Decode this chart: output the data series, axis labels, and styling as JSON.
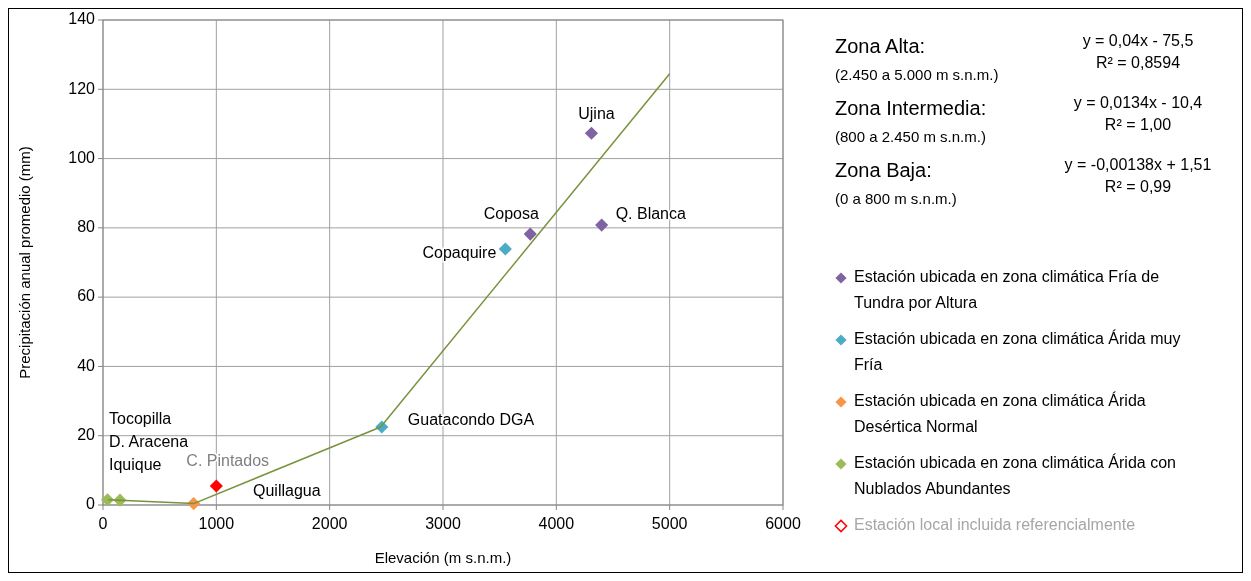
{
  "chart_data": {
    "type": "scatter",
    "xlabel": "Elevación (m s.n.m.)",
    "ylabel": "Precipitación anual promedio (mm)",
    "xlim": [
      0,
      6000
    ],
    "xticks": [
      0,
      1000,
      2000,
      3000,
      4000,
      5000,
      6000
    ],
    "ylim": [
      0,
      140
    ],
    "yticks": [
      0,
      20,
      40,
      60,
      80,
      100,
      120,
      140
    ],
    "grid": true,
    "legend": "right",
    "marker": "diamond",
    "series": [
      {
        "name": "Estación ubicada en zona climática Fría de Tundra por Altura",
        "color": "#8064a2",
        "x": [
          4310,
          4400,
          3770
        ],
        "values": [
          107.3,
          80.8,
          78.2
        ]
      },
      {
        "name": "Estación ubicada en zona climática Árida muy Fría",
        "color": "#4bacc6",
        "x": [
          3550,
          2460
        ],
        "values": [
          73.9,
          22.5
        ]
      },
      {
        "name": "Estación ubicada en zona climática Árida Desértica Normal",
        "color": "#f79646",
        "x": [
          800
        ],
        "values": [
          0.4
        ]
      },
      {
        "name": "Estación ubicada en zona climática Árida con Nublados Abundantes",
        "color": "#9bbb59",
        "x": [
          40,
          150
        ],
        "values": [
          1.5,
          1.4
        ]
      },
      {
        "name": "Estación local incluida referencialmente",
        "color": "#ff0000",
        "x": [
          1000
        ],
        "values": [
          5.5
        ]
      },
      {
        "type": "line",
        "color": "#77933c",
        "marker": "none",
        "x": [
          45,
          800,
          2450,
          5000
        ],
        "values": [
          1.5,
          0.4,
          22.5,
          124.5
        ]
      }
    ],
    "annotations": [
      "Zona Alta:",
      "(2.450 a 5.000 m s.n.m.)",
      "y = 0,04x - 75,5",
      "R² = 0,8594",
      "Zona Intermedia:",
      "(800 a 2.450 m s.n.m.)",
      "y = 0,0134x - 10,4",
      "R² = 1,00",
      "Zona Baja:",
      "(0 a 800 m s.n.m.)",
      "y = -0,00138x + 1,51",
      "R² = 0,99",
      "Tocopilla",
      "D. Aracena",
      "Iquique",
      "Quillagua",
      {
        "text": "Ujina",
        "x": 4310,
        "y": 107.3
      },
      {
        "text": "Q. Blanca",
        "x": 4400,
        "y": 80.8
      },
      {
        "text": "Coposa",
        "x": 3770,
        "y": 78.2
      },
      {
        "text": "Copaquire",
        "x": 3550,
        "y": 73.9
      },
      {
        "text": "Guatacondo DGA",
        "x": 2460,
        "y": 22.5
      },
      {
        "text": "C. Pintados",
        "x": 1000,
        "y": 5.5
      }
    ]
  }
}
